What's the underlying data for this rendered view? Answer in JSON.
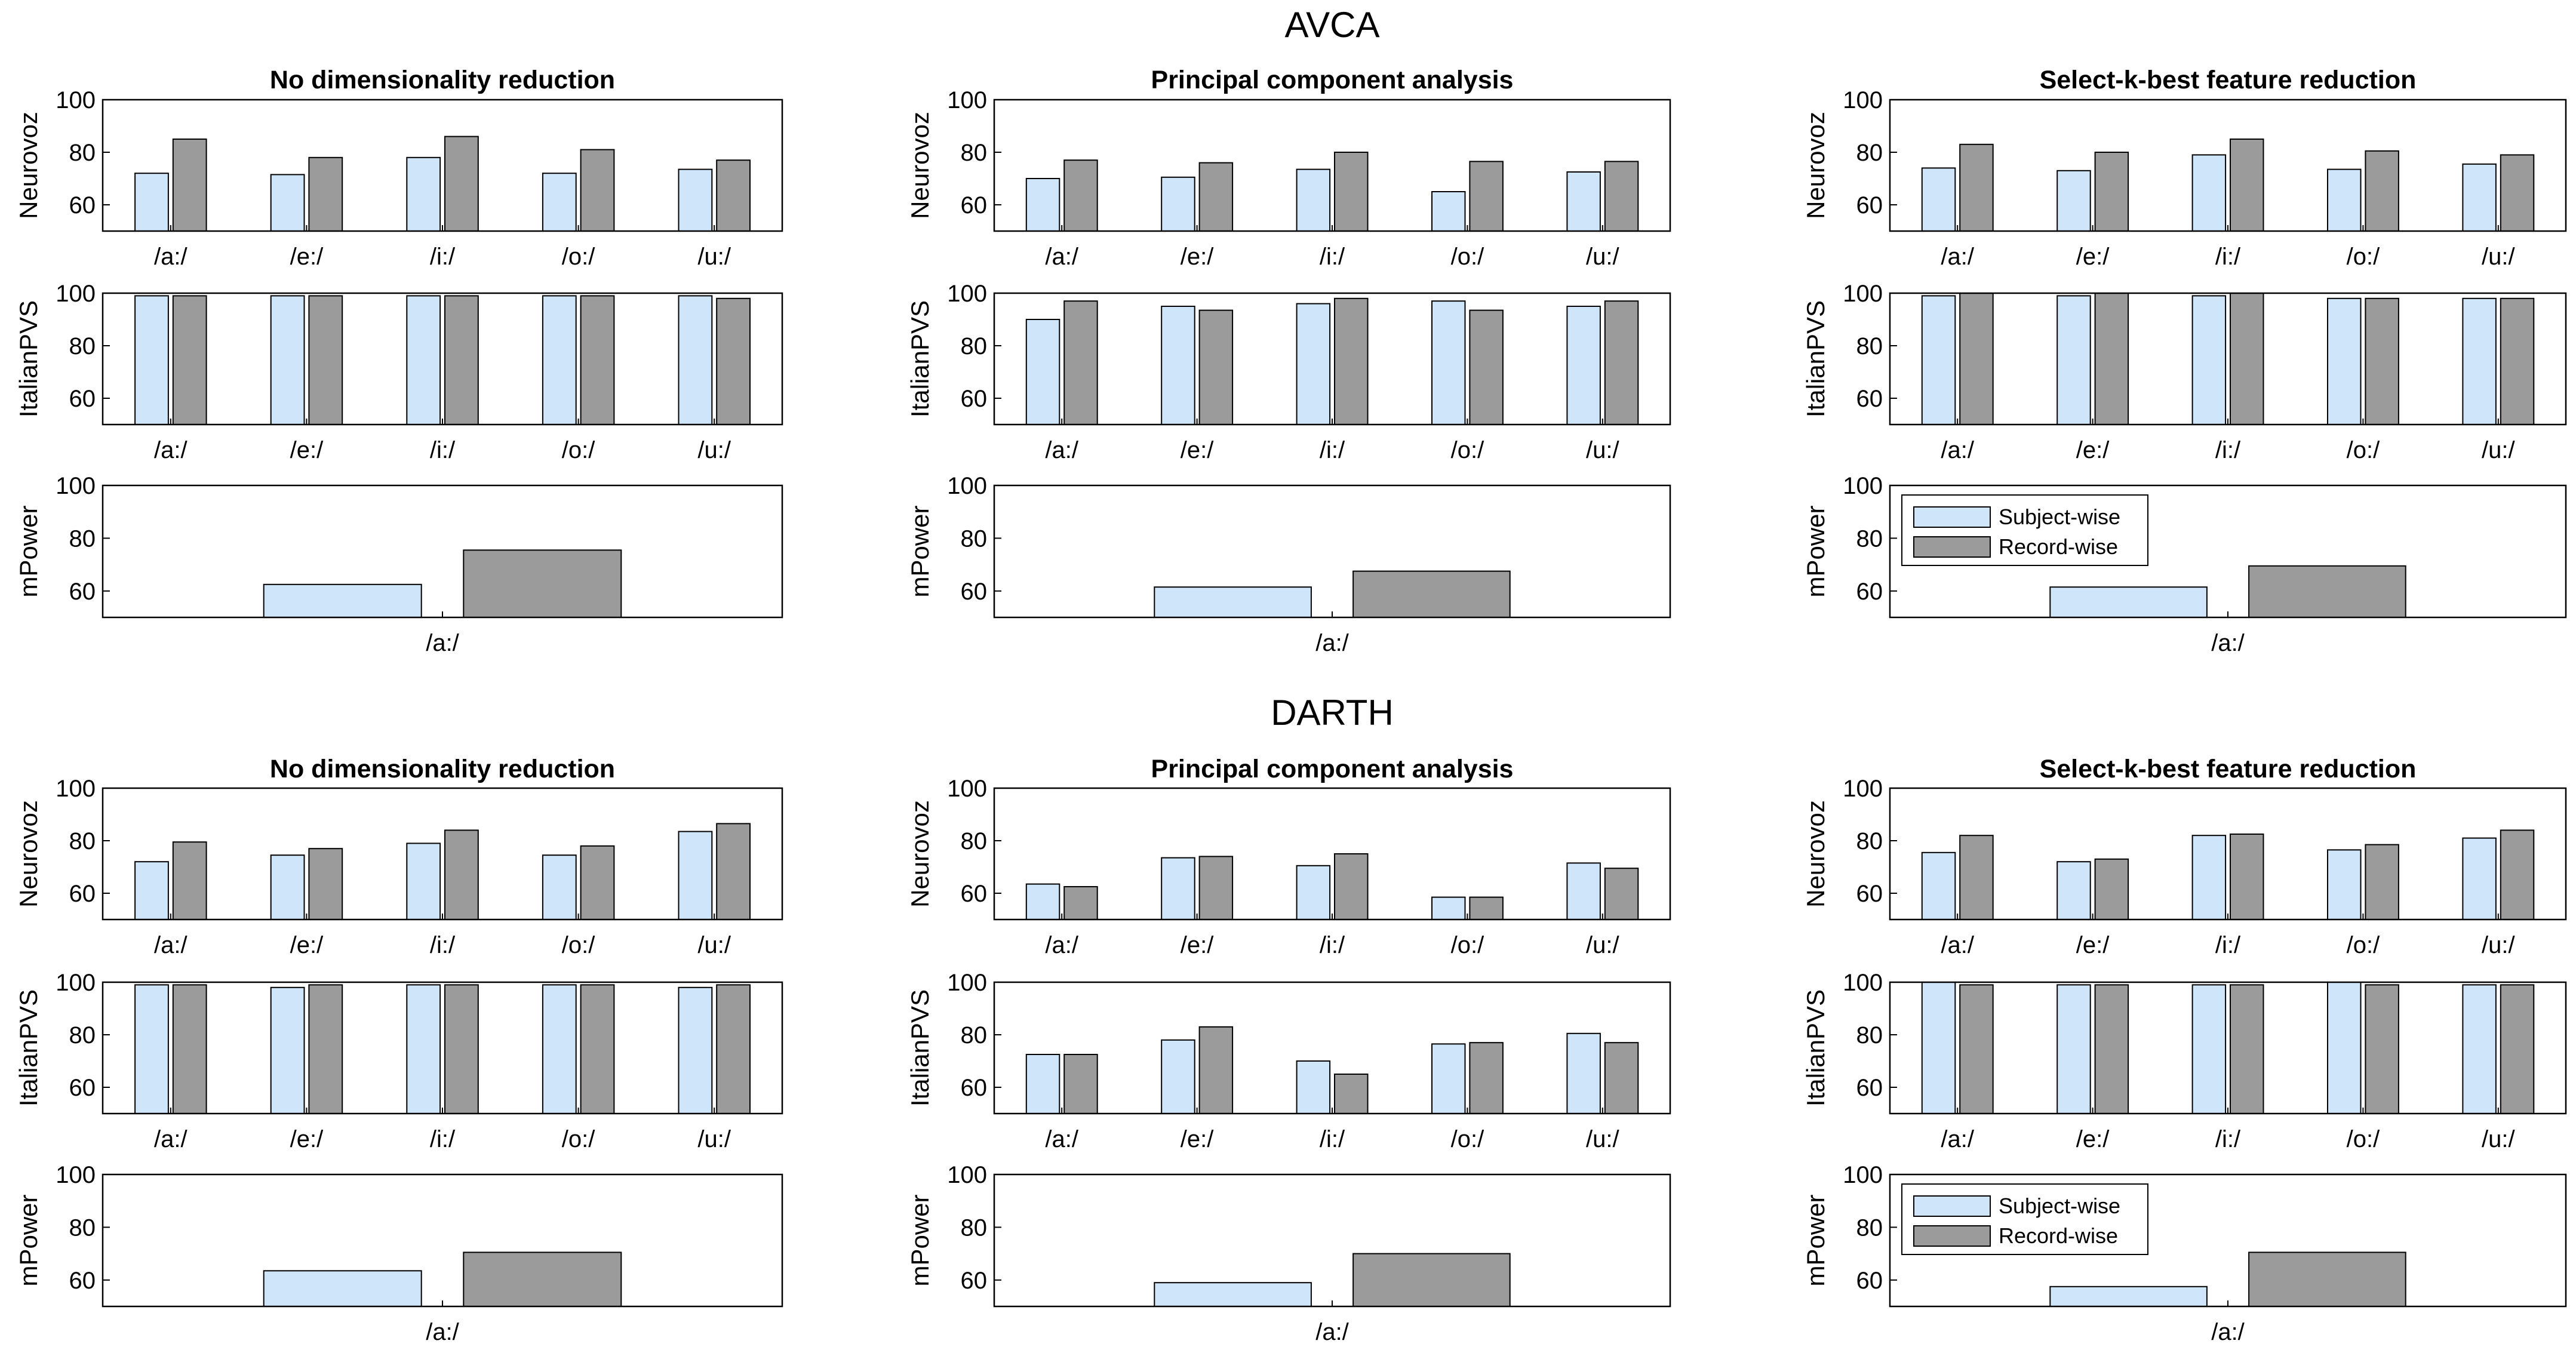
{
  "colors": {
    "subject_wise": "#cfe5fa",
    "record_wise": "#9b9b9b",
    "axis": "#000000",
    "background": "#ffffff"
  },
  "legend": {
    "placement": "top-left",
    "entries": [
      "Subject-wise",
      "Record-wise"
    ]
  },
  "chart_data": [
    {
      "group": "AVCA",
      "title": "No dimensionality reduction",
      "rows": [
        {
          "ylabel": "Neurovoz",
          "type": "bar",
          "categories": [
            "/a:/",
            "/e:/",
            "/i:/",
            "/o:/",
            "/u:/"
          ],
          "ylim": [
            50,
            100
          ],
          "yticks": [
            60,
            80,
            100
          ],
          "series": [
            {
              "name": "Subject-wise",
              "values": [
                72,
                71.5,
                78,
                72,
                73.5
              ]
            },
            {
              "name": "Record-wise",
              "values": [
                85,
                78,
                86,
                81,
                77
              ]
            }
          ]
        },
        {
          "ylabel": "ItalianPVS",
          "type": "bar",
          "categories": [
            "/a:/",
            "/e:/",
            "/i:/",
            "/o:/",
            "/u:/"
          ],
          "ylim": [
            50,
            100
          ],
          "yticks": [
            60,
            80,
            100
          ],
          "series": [
            {
              "name": "Subject-wise",
              "values": [
                99,
                99,
                99,
                99,
                99
              ]
            },
            {
              "name": "Record-wise",
              "values": [
                99,
                99,
                99,
                99,
                98
              ]
            }
          ]
        },
        {
          "ylabel": "mPower",
          "type": "bar",
          "categories": [
            "/a:/"
          ],
          "ylim": [
            50,
            100
          ],
          "yticks": [
            60,
            80,
            100
          ],
          "series": [
            {
              "name": "Subject-wise",
              "values": [
                62.5
              ]
            },
            {
              "name": "Record-wise",
              "values": [
                75.5
              ]
            }
          ]
        }
      ]
    },
    {
      "group": "AVCA",
      "title": "Principal component analysis",
      "rows": [
        {
          "ylabel": "Neurovoz",
          "type": "bar",
          "categories": [
            "/a:/",
            "/e:/",
            "/i:/",
            "/o:/",
            "/u:/"
          ],
          "ylim": [
            50,
            100
          ],
          "yticks": [
            60,
            80,
            100
          ],
          "series": [
            {
              "name": "Subject-wise",
              "values": [
                70,
                70.5,
                73.5,
                65,
                72.5
              ]
            },
            {
              "name": "Record-wise",
              "values": [
                77,
                76,
                80,
                76.5,
                76.5
              ]
            }
          ]
        },
        {
          "ylabel": "ItalianPVS",
          "type": "bar",
          "categories": [
            "/a:/",
            "/e:/",
            "/i:/",
            "/o:/",
            "/u:/"
          ],
          "ylim": [
            50,
            100
          ],
          "yticks": [
            60,
            80,
            100
          ],
          "series": [
            {
              "name": "Subject-wise",
              "values": [
                90,
                95,
                96,
                97,
                95
              ]
            },
            {
              "name": "Record-wise",
              "values": [
                97,
                93.5,
                98,
                93.5,
                97
              ]
            }
          ]
        },
        {
          "ylabel": "mPower",
          "type": "bar",
          "categories": [
            "/a:/"
          ],
          "ylim": [
            50,
            100
          ],
          "yticks": [
            60,
            80,
            100
          ],
          "series": [
            {
              "name": "Subject-wise",
              "values": [
                61.5
              ]
            },
            {
              "name": "Record-wise",
              "values": [
                67.5
              ]
            }
          ]
        }
      ]
    },
    {
      "group": "AVCA",
      "title": "Select-k-best feature reduction",
      "rows": [
        {
          "ylabel": "Neurovoz",
          "type": "bar",
          "categories": [
            "/a:/",
            "/e:/",
            "/i:/",
            "/o:/",
            "/u:/"
          ],
          "ylim": [
            50,
            100
          ],
          "yticks": [
            60,
            80,
            100
          ],
          "series": [
            {
              "name": "Subject-wise",
              "values": [
                74,
                73,
                79,
                73.5,
                75.5
              ]
            },
            {
              "name": "Record-wise",
              "values": [
                83,
                80,
                85,
                80.5,
                79
              ]
            }
          ]
        },
        {
          "ylabel": "ItalianPVS",
          "type": "bar",
          "categories": [
            "/a:/",
            "/e:/",
            "/i:/",
            "/o:/",
            "/u:/"
          ],
          "ylim": [
            50,
            100
          ],
          "yticks": [
            60,
            80,
            100
          ],
          "series": [
            {
              "name": "Subject-wise",
              "values": [
                99,
                99,
                99,
                98,
                98
              ]
            },
            {
              "name": "Record-wise",
              "values": [
                100,
                100,
                100,
                98,
                98
              ]
            }
          ]
        },
        {
          "ylabel": "mPower",
          "type": "bar",
          "categories": [
            "/a:/"
          ],
          "ylim": [
            50,
            100
          ],
          "yticks": [
            60,
            80,
            100
          ],
          "legend": true,
          "series": [
            {
              "name": "Subject-wise",
              "values": [
                61.5
              ]
            },
            {
              "name": "Record-wise",
              "values": [
                69.5
              ]
            }
          ]
        }
      ]
    },
    {
      "group": "DARTH",
      "title": "No dimensionality reduction",
      "rows": [
        {
          "ylabel": "Neurovoz",
          "type": "bar",
          "categories": [
            "/a:/",
            "/e:/",
            "/i:/",
            "/o:/",
            "/u:/"
          ],
          "ylim": [
            50,
            100
          ],
          "yticks": [
            60,
            80,
            100
          ],
          "series": [
            {
              "name": "Subject-wise",
              "values": [
                72,
                74.5,
                79,
                74.5,
                83.5
              ]
            },
            {
              "name": "Record-wise",
              "values": [
                79.5,
                77,
                84,
                78,
                86.5
              ]
            }
          ]
        },
        {
          "ylabel": "ItalianPVS",
          "type": "bar",
          "categories": [
            "/a:/",
            "/e:/",
            "/i:/",
            "/o:/",
            "/u:/"
          ],
          "ylim": [
            50,
            100
          ],
          "yticks": [
            60,
            80,
            100
          ],
          "series": [
            {
              "name": "Subject-wise",
              "values": [
                99,
                98,
                99,
                99,
                98
              ]
            },
            {
              "name": "Record-wise",
              "values": [
                99,
                99,
                99,
                99,
                99
              ]
            }
          ]
        },
        {
          "ylabel": "mPower",
          "type": "bar",
          "categories": [
            "/a:/"
          ],
          "ylim": [
            50,
            100
          ],
          "yticks": [
            60,
            80,
            100
          ],
          "series": [
            {
              "name": "Subject-wise",
              "values": [
                63.5
              ]
            },
            {
              "name": "Record-wise",
              "values": [
                70.5
              ]
            }
          ]
        }
      ]
    },
    {
      "group": "DARTH",
      "title": "Principal component analysis",
      "rows": [
        {
          "ylabel": "Neurovoz",
          "type": "bar",
          "categories": [
            "/a:/",
            "/e:/",
            "/i:/",
            "/o:/",
            "/u:/"
          ],
          "ylim": [
            50,
            100
          ],
          "yticks": [
            60,
            80,
            100
          ],
          "series": [
            {
              "name": "Subject-wise",
              "values": [
                63.5,
                73.5,
                70.5,
                58.5,
                71.5
              ]
            },
            {
              "name": "Record-wise",
              "values": [
                62.5,
                74,
                75,
                58.5,
                69.5
              ]
            }
          ]
        },
        {
          "ylabel": "ItalianPVS",
          "type": "bar",
          "categories": [
            "/a:/",
            "/e:/",
            "/i:/",
            "/o:/",
            "/u:/"
          ],
          "ylim": [
            50,
            100
          ],
          "yticks": [
            60,
            80,
            100
          ],
          "series": [
            {
              "name": "Subject-wise",
              "values": [
                72.5,
                78,
                70,
                76.5,
                80.5
              ]
            },
            {
              "name": "Record-wise",
              "values": [
                72.5,
                83,
                65,
                77,
                77
              ]
            }
          ]
        },
        {
          "ylabel": "mPower",
          "type": "bar",
          "categories": [
            "/a:/"
          ],
          "ylim": [
            50,
            100
          ],
          "yticks": [
            60,
            80,
            100
          ],
          "series": [
            {
              "name": "Subject-wise",
              "values": [
                59
              ]
            },
            {
              "name": "Record-wise",
              "values": [
                70
              ]
            }
          ]
        }
      ]
    },
    {
      "group": "DARTH",
      "title": "Select-k-best feature reduction",
      "rows": [
        {
          "ylabel": "Neurovoz",
          "type": "bar",
          "categories": [
            "/a:/",
            "/e:/",
            "/i:/",
            "/o:/",
            "/u:/"
          ],
          "ylim": [
            50,
            100
          ],
          "yticks": [
            60,
            80,
            100
          ],
          "series": [
            {
              "name": "Subject-wise",
              "values": [
                75.5,
                72,
                82,
                76.5,
                81
              ]
            },
            {
              "name": "Record-wise",
              "values": [
                82,
                73,
                82.5,
                78.5,
                84
              ]
            }
          ]
        },
        {
          "ylabel": "ItalianPVS",
          "type": "bar",
          "categories": [
            "/a:/",
            "/e:/",
            "/i:/",
            "/o:/",
            "/u:/"
          ],
          "ylim": [
            50,
            100
          ],
          "yticks": [
            60,
            80,
            100
          ],
          "series": [
            {
              "name": "Subject-wise",
              "values": [
                100,
                99,
                99,
                100,
                99
              ]
            },
            {
              "name": "Record-wise",
              "values": [
                99,
                99,
                99,
                99,
                99
              ]
            }
          ]
        },
        {
          "ylabel": "mPower",
          "type": "bar",
          "categories": [
            "/a:/"
          ],
          "ylim": [
            50,
            100
          ],
          "yticks": [
            60,
            80,
            100
          ],
          "legend": true,
          "series": [
            {
              "name": "Subject-wise",
              "values": [
                57.5
              ]
            },
            {
              "name": "Record-wise",
              "values": [
                70.5
              ]
            }
          ]
        }
      ]
    }
  ]
}
